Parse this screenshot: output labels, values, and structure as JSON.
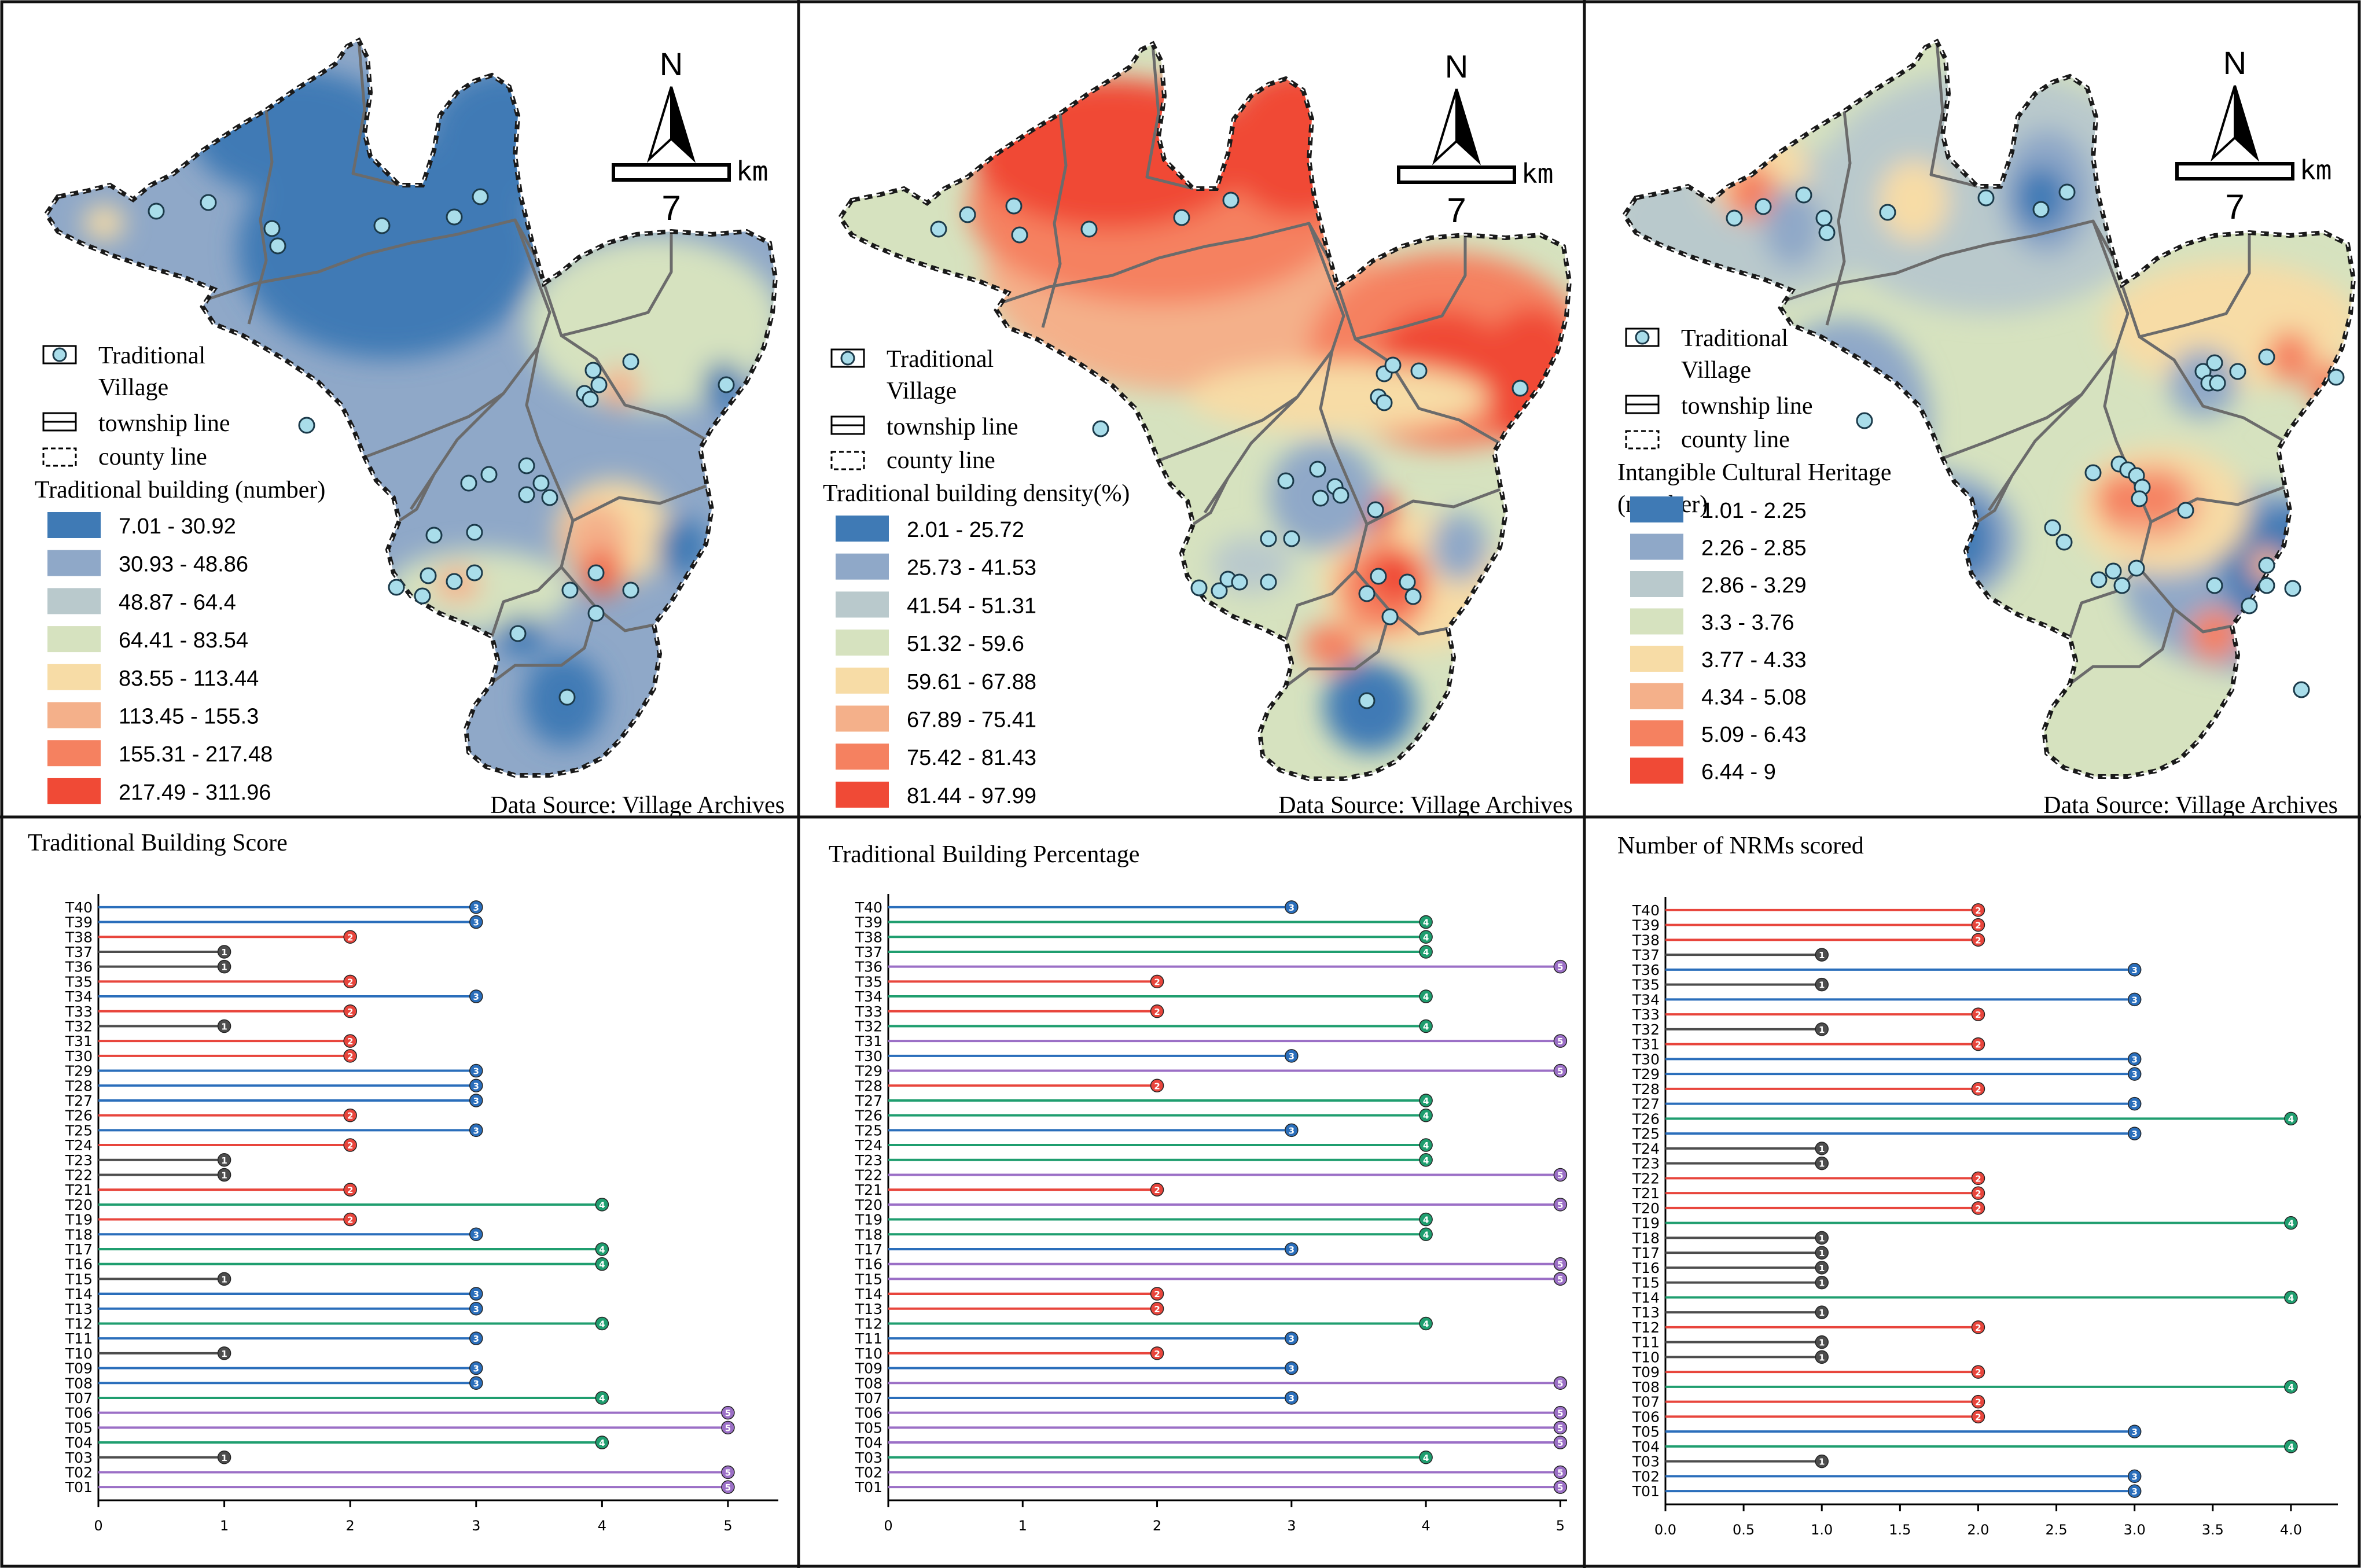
{
  "maps": [
    {
      "legend_title": "Traditional building (number)",
      "legend_title_lines": [
        "Traditional building (number)"
      ],
      "classes": [
        "7.01 - 30.92",
        "30.93 - 48.86",
        "48.87 - 64.4",
        "64.41 - 83.54",
        "83.55 - 113.44",
        "113.45 - 155.3",
        "155.31 - 217.48",
        "217.49 - 311.96"
      ],
      "base_color": "#8fa8c8",
      "zones": [
        {
          "c": "#3f7ab5",
          "x": 680,
          "y": 430,
          "rx": 260,
          "ry": 190
        },
        {
          "c": "#3f7ab5",
          "x": 520,
          "y": 230,
          "rx": 180,
          "ry": 110
        },
        {
          "c": "#3f7ab5",
          "x": 880,
          "y": 240,
          "rx": 130,
          "ry": 120
        },
        {
          "c": "#d6e2bf",
          "x": 1140,
          "y": 560,
          "rx": 220,
          "ry": 150
        },
        {
          "c": "#d6e2bf",
          "x": 840,
          "y": 1020,
          "rx": 160,
          "ry": 70
        },
        {
          "c": "#f7dca6",
          "x": 1070,
          "y": 920,
          "rx": 100,
          "ry": 90
        },
        {
          "c": "#f4b08a",
          "x": 1040,
          "y": 930,
          "rx": 55,
          "ry": 60
        },
        {
          "c": "#f06a4e",
          "x": 1050,
          "y": 990,
          "rx": 40,
          "ry": 40
        },
        {
          "c": "#f4b08a",
          "x": 800,
          "y": 1010,
          "rx": 40,
          "ry": 30
        },
        {
          "c": "#f4b08a",
          "x": 1080,
          "y": 670,
          "rx": 35,
          "ry": 35
        },
        {
          "c": "#3f7ab5",
          "x": 1190,
          "y": 945,
          "rx": 45,
          "ry": 50
        },
        {
          "c": "#3f7ab5",
          "x": 985,
          "y": 1210,
          "rx": 70,
          "ry": 80
        },
        {
          "c": "#3f7ab5",
          "x": 1260,
          "y": 670,
          "rx": 35,
          "ry": 45
        },
        {
          "c": "#3f7ab5",
          "x": 910,
          "y": 1100,
          "rx": 40,
          "ry": 35
        },
        {
          "c": "#f7dca6",
          "x": 190,
          "y": 385,
          "rx": 35,
          "ry": 30
        }
      ],
      "villages": [
        [
          280,
          365
        ],
        [
          370,
          350
        ],
        [
          480,
          395
        ],
        [
          490,
          425
        ],
        [
          670,
          390
        ],
        [
          795,
          375
        ],
        [
          840,
          340
        ],
        [
          540,
          735
        ],
        [
          820,
          835
        ],
        [
          855,
          820
        ],
        [
          920,
          805
        ],
        [
          945,
          835
        ],
        [
          960,
          860
        ],
        [
          920,
          855
        ],
        [
          1035,
          640
        ],
        [
          1045,
          665
        ],
        [
          1020,
          680
        ],
        [
          1030,
          690
        ],
        [
          1100,
          625
        ],
        [
          1265,
          665
        ],
        [
          760,
          925
        ],
        [
          830,
          920
        ],
        [
          695,
          1015
        ],
        [
          740,
          1030
        ],
        [
          750,
          995
        ],
        [
          795,
          1005
        ],
        [
          830,
          990
        ],
        [
          995,
          1020
        ],
        [
          1040,
          990
        ],
        [
          1100,
          1020
        ],
        [
          1040,
          1060
        ],
        [
          905,
          1095
        ],
        [
          990,
          1205
        ]
      ]
    },
    {
      "legend_title": "Traditional building density(%)",
      "legend_title_lines": [
        "Traditional building density(%)"
      ],
      "classes": [
        "2.01 - 25.72",
        "25.73 - 41.53",
        "41.54 - 51.31",
        "51.32 - 59.6",
        "59.61 - 67.88",
        "67.89 - 75.41",
        "75.42 - 81.43",
        "81.44 - 97.99"
      ],
      "base_color": "#d6e2bf",
      "zones": [
        {
          "c": "#f4b08a",
          "x": 680,
          "y": 460,
          "rx": 340,
          "ry": 210
        },
        {
          "c": "#f58160",
          "x": 640,
          "y": 350,
          "rx": 330,
          "ry": 170
        },
        {
          "c": "#f04a36",
          "x": 560,
          "y": 260,
          "rx": 240,
          "ry": 130
        },
        {
          "c": "#f04a36",
          "x": 880,
          "y": 240,
          "rx": 130,
          "ry": 130
        },
        {
          "c": "#f58160",
          "x": 1140,
          "y": 600,
          "rx": 240,
          "ry": 170
        },
        {
          "c": "#f04a36",
          "x": 1130,
          "y": 610,
          "rx": 110,
          "ry": 80
        },
        {
          "c": "#f04a36",
          "x": 1285,
          "y": 645,
          "rx": 90,
          "ry": 120
        },
        {
          "c": "#f7dca6",
          "x": 950,
          "y": 680,
          "rx": 260,
          "ry": 60
        },
        {
          "c": "#f7dca6",
          "x": 1080,
          "y": 1000,
          "rx": 160,
          "ry": 120
        },
        {
          "c": "#f58160",
          "x": 1030,
          "y": 1010,
          "rx": 80,
          "ry": 80
        },
        {
          "c": "#f04a36",
          "x": 1050,
          "y": 990,
          "rx": 45,
          "ry": 45
        },
        {
          "c": "#f04a36",
          "x": 1015,
          "y": 880,
          "rx": 40,
          "ry": 40
        },
        {
          "c": "#f58160",
          "x": 940,
          "y": 1110,
          "rx": 50,
          "ry": 40
        },
        {
          "c": "#8fa8c8",
          "x": 925,
          "y": 850,
          "rx": 95,
          "ry": 95
        },
        {
          "c": "#3f7ab5",
          "x": 1005,
          "y": 1215,
          "rx": 80,
          "ry": 80
        },
        {
          "c": "#8fa8c8",
          "x": 1160,
          "y": 940,
          "rx": 50,
          "ry": 60
        },
        {
          "c": "#b9c9cc",
          "x": 800,
          "y": 970,
          "rx": 70,
          "ry": 50
        }
      ],
      "villages": [
        [
          260,
          390
        ],
        [
          310,
          365
        ],
        [
          390,
          350
        ],
        [
          400,
          400
        ],
        [
          520,
          390
        ],
        [
          680,
          370
        ],
        [
          765,
          340
        ],
        [
          540,
          735
        ],
        [
          1030,
          640
        ],
        [
          1045,
          625
        ],
        [
          1020,
          680
        ],
        [
          1030,
          690
        ],
        [
          1090,
          635
        ],
        [
          1265,
          665
        ],
        [
          860,
          825
        ],
        [
          915,
          805
        ],
        [
          945,
          835
        ],
        [
          955,
          850
        ],
        [
          920,
          855
        ],
        [
          1015,
          875
        ],
        [
          830,
          925
        ],
        [
          870,
          925
        ],
        [
          710,
          1010
        ],
        [
          745,
          1015
        ],
        [
          760,
          995
        ],
        [
          780,
          1000
        ],
        [
          830,
          1000
        ],
        [
          1000,
          1020
        ],
        [
          1020,
          990
        ],
        [
          1070,
          1000
        ],
        [
          1080,
          1025
        ],
        [
          1040,
          1060
        ],
        [
          1000,
          1205
        ]
      ]
    },
    {
      "legend_title": "Intangible Cultural Heritage (number)",
      "legend_title_lines": [
        "Intangible Cultural Heritage",
        "(number)"
      ],
      "classes": [
        "1.01 - 2.25",
        "2.26 - 2.85",
        "2.86 - 3.29",
        "3.3 - 3.76",
        "3.77 - 4.33",
        "4.34 - 5.08",
        "5.09 - 6.43",
        "6.44 - 9"
      ],
      "base_color": "#d6e2bf",
      "zones": [
        {
          "c": "#b9c9cc",
          "x": 300,
          "y": 380,
          "rx": 240,
          "ry": 140
        },
        {
          "c": "#b9c9cc",
          "x": 720,
          "y": 330,
          "rx": 300,
          "ry": 210
        },
        {
          "c": "#8fa8c8",
          "x": 820,
          "y": 330,
          "rx": 80,
          "ry": 110
        },
        {
          "c": "#3f7ab5",
          "x": 810,
          "y": 340,
          "rx": 45,
          "ry": 55
        },
        {
          "c": "#f7dca6",
          "x": 590,
          "y": 345,
          "rx": 60,
          "ry": 70
        },
        {
          "c": "#f7dca6",
          "x": 320,
          "y": 300,
          "rx": 90,
          "ry": 80
        },
        {
          "c": "#f58160",
          "x": 310,
          "y": 330,
          "rx": 45,
          "ry": 50
        },
        {
          "c": "#8fa8c8",
          "x": 380,
          "y": 390,
          "rx": 50,
          "ry": 70
        },
        {
          "c": "#8fa8c8",
          "x": 470,
          "y": 730,
          "rx": 150,
          "ry": 180
        },
        {
          "c": "#3f7ab5",
          "x": 460,
          "y": 740,
          "rx": 70,
          "ry": 90
        },
        {
          "c": "#8fa8c8",
          "x": 620,
          "y": 930,
          "rx": 150,
          "ry": 120
        },
        {
          "c": "#3f7ab5",
          "x": 680,
          "y": 930,
          "rx": 50,
          "ry": 70
        },
        {
          "c": "#8fa8c8",
          "x": 1170,
          "y": 1000,
          "rx": 220,
          "ry": 160
        },
        {
          "c": "#3f7ab5",
          "x": 1240,
          "y": 980,
          "rx": 120,
          "ry": 110
        },
        {
          "c": "#f7dca6",
          "x": 1140,
          "y": 560,
          "rx": 220,
          "ry": 110
        },
        {
          "c": "#f58160",
          "x": 1240,
          "y": 615,
          "rx": 40,
          "ry": 45
        },
        {
          "c": "#f58160",
          "x": 1310,
          "y": 665,
          "rx": 40,
          "ry": 40
        },
        {
          "c": "#8fa8c8",
          "x": 1090,
          "y": 660,
          "rx": 60,
          "ry": 60
        },
        {
          "c": "#f7dca6",
          "x": 1020,
          "y": 880,
          "rx": 150,
          "ry": 110
        },
        {
          "c": "#f4b08a",
          "x": 1000,
          "y": 870,
          "rx": 90,
          "ry": 70
        },
        {
          "c": "#f58160",
          "x": 945,
          "y": 860,
          "rx": 40,
          "ry": 45
        },
        {
          "c": "#f58160",
          "x": 1015,
          "y": 860,
          "rx": 40,
          "ry": 45
        },
        {
          "c": "#f58160",
          "x": 1110,
          "y": 1095,
          "rx": 45,
          "ry": 45
        },
        {
          "c": "#f4b08a",
          "x": 1200,
          "y": 975,
          "rx": 30,
          "ry": 30
        }
      ],
      "villages": [
        [
          280,
          375
        ],
        [
          330,
          355
        ],
        [
          400,
          335
        ],
        [
          435,
          375
        ],
        [
          440,
          400
        ],
        [
          545,
          365
        ],
        [
          715,
          340
        ],
        [
          810,
          360
        ],
        [
          855,
          330
        ],
        [
          505,
          725
        ],
        [
          1090,
          640
        ],
        [
          1110,
          625
        ],
        [
          1100,
          660
        ],
        [
          1115,
          660
        ],
        [
          1150,
          640
        ],
        [
          1200,
          615
        ],
        [
          1320,
          650
        ],
        [
          900,
          815
        ],
        [
          945,
          800
        ],
        [
          960,
          810
        ],
        [
          975,
          820
        ],
        [
          985,
          840
        ],
        [
          980,
          860
        ],
        [
          1060,
          880
        ],
        [
          830,
          910
        ],
        [
          850,
          935
        ],
        [
          910,
          1000
        ],
        [
          935,
          985
        ],
        [
          975,
          980
        ],
        [
          950,
          1010
        ],
        [
          1110,
          1010
        ],
        [
          1170,
          1045
        ],
        [
          1200,
          975
        ],
        [
          1200,
          1010
        ],
        [
          1245,
          1015
        ],
        [
          1420,
          925
        ],
        [
          1260,
          1190
        ]
      ]
    },
    {
      "legend_title": "",
      "legend_title_lines": []
    }
  ],
  "common_legend": {
    "village_line1": "Traditional",
    "village_line2": "Village",
    "township": "township line",
    "county": "county line"
  },
  "north_label": "N",
  "scale_value": "7",
  "scale_unit": "km",
  "data_source": "Data Source: Village Archives",
  "colors": [
    "#3f7ab5",
    "#8fa8c8",
    "#b9c9cc",
    "#d6e2bf",
    "#f7dca6",
    "#f4b08a",
    "#f58160",
    "#f04a36"
  ],
  "series_colors": {
    "1": "#4d4d4d",
    "2": "#e8453c",
    "3": "#2a6ebb",
    "4": "#1f9e6f",
    "5": "#9b6fc6"
  },
  "chart_data": [
    {
      "type": "bar",
      "orientation": "horizontal",
      "title": "Traditional Building Score",
      "categories": [
        "T40",
        "T39",
        "T38",
        "T37",
        "T36",
        "T35",
        "T34",
        "T33",
        "T32",
        "T31",
        "T30",
        "T29",
        "T28",
        "T27",
        "T26",
        "T25",
        "T24",
        "T23",
        "T22",
        "T21",
        "T20",
        "T19",
        "T18",
        "T17",
        "T16",
        "T15",
        "T14",
        "T13",
        "T12",
        "T11",
        "T10",
        "T09",
        "T08",
        "T07",
        "T06",
        "T05",
        "T04",
        "T03",
        "T02",
        "T01"
      ],
      "values": [
        3,
        3,
        2,
        1,
        1,
        2,
        3,
        2,
        1,
        2,
        2,
        3,
        3,
        3,
        2,
        3,
        2,
        1,
        1,
        2,
        4,
        2,
        3,
        4,
        4,
        1,
        3,
        3,
        4,
        3,
        1,
        3,
        3,
        4,
        5,
        5,
        4,
        1,
        5,
        5
      ],
      "xlim": [
        0,
        5.4
      ],
      "x_ticks": [
        "0",
        "1",
        "2",
        "3",
        "4",
        "5"
      ],
      "x_tick_values": [
        0,
        1,
        2,
        3,
        4,
        5
      ]
    },
    {
      "type": "bar",
      "orientation": "horizontal",
      "title": "Traditional Building Percentage",
      "categories": [
        "T40",
        "T39",
        "T38",
        "T37",
        "T36",
        "T35",
        "T34",
        "T33",
        "T32",
        "T31",
        "T30",
        "T29",
        "T28",
        "T27",
        "T26",
        "T25",
        "T24",
        "T23",
        "T22",
        "T21",
        "T20",
        "T19",
        "T18",
        "T17",
        "T16",
        "T15",
        "T14",
        "T13",
        "T12",
        "T11",
        "T10",
        "T09",
        "T08",
        "T07",
        "T06",
        "T05",
        "T04",
        "T03",
        "T02",
        "T01"
      ],
      "values": [
        3,
        4,
        4,
        4,
        5,
        2,
        4,
        2,
        4,
        5,
        3,
        5,
        2,
        4,
        4,
        3,
        4,
        4,
        5,
        2,
        5,
        4,
        4,
        3,
        5,
        5,
        2,
        2,
        4,
        3,
        2,
        3,
        5,
        3,
        5,
        5,
        5,
        4,
        5,
        5
      ],
      "xlim": [
        0,
        5.05
      ],
      "x_ticks": [
        "0",
        "1",
        "2",
        "3",
        "4",
        "5"
      ],
      "x_tick_values": [
        0,
        1,
        2,
        3,
        4,
        5
      ]
    },
    {
      "type": "bar",
      "orientation": "horizontal",
      "title": "Number of NRMs scored",
      "categories": [
        "T40",
        "T39",
        "T38",
        "T37",
        "T36",
        "T35",
        "T34",
        "T33",
        "T32",
        "T31",
        "T30",
        "T29",
        "T28",
        "T27",
        "T26",
        "T25",
        "T24",
        "T23",
        "T22",
        "T21",
        "T20",
        "T19",
        "T18",
        "T17",
        "T16",
        "T15",
        "T14",
        "T13",
        "T12",
        "T11",
        "T10",
        "T09",
        "T08",
        "T07",
        "T06",
        "T05",
        "T04",
        "T03",
        "T02",
        "T01"
      ],
      "values": [
        2,
        2,
        2,
        1,
        3,
        1,
        3,
        2,
        1,
        2,
        3,
        3,
        2,
        3,
        4,
        3,
        1,
        1,
        2,
        2,
        2,
        4,
        1,
        1,
        1,
        1,
        4,
        1,
        2,
        1,
        1,
        2,
        4,
        2,
        2,
        3,
        4,
        1,
        3,
        3
      ],
      "xlim": [
        0,
        4.3
      ],
      "x_ticks": [
        "0.0",
        "0.5",
        "1.0",
        "1.5",
        "2.0",
        "2.5",
        "3.0",
        "3.5",
        "4.0"
      ],
      "x_tick_values": [
        0,
        0.5,
        1,
        1.5,
        2,
        2.5,
        3,
        3.5,
        4
      ]
    }
  ]
}
